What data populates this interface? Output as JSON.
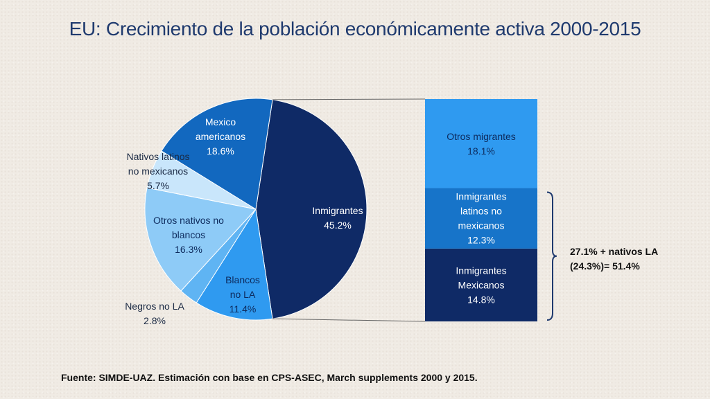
{
  "title": "EU: Crecimiento de la población económicamente activa 2000-2015",
  "source": "Fuente:  SIMDE-UAZ. Estimación con base en CPS-ASEC, March supplements 2000 y 2015.",
  "bracket_note": [
    "27.1% + nativos LA",
    "(24.3%)= 51.4%"
  ],
  "chart_data": [
    {
      "type": "pie",
      "slices": [
        {
          "label": [
            "Inmigrantes",
            "45.2%"
          ],
          "value": 45.2,
          "color": "#0f2a66"
        },
        {
          "label": [
            "Blancos",
            "no LA",
            "11.4%"
          ],
          "value": 11.4,
          "color": "#2f9af0"
        },
        {
          "label": [
            "Negros no LA",
            "2.8%"
          ],
          "value": 2.8,
          "color": "#5fb4f3"
        },
        {
          "label": [
            "Otros nativos no",
            "blancos",
            "16.3%"
          ],
          "value": 16.3,
          "color": "#8ecbf7"
        },
        {
          "label": [
            "Nativos latinos",
            "no mexicanos",
            "5.7%"
          ],
          "value": 5.7,
          "color": "#c9e6fb"
        },
        {
          "label": [
            "Mexico",
            "americanos",
            "18.6%"
          ],
          "value": 18.6,
          "color": "#1268bf"
        }
      ]
    },
    {
      "type": "bar",
      "stacked": true,
      "segments": [
        {
          "label": [
            "Inmigrantes",
            "Mexicanos",
            "14.8%"
          ],
          "value": 14.8,
          "color": "#0f2a66"
        },
        {
          "label": [
            "Inmigrantes",
            "latinos no",
            "mexicanos",
            "12.3%"
          ],
          "value": 12.3,
          "color": "#1774c9"
        },
        {
          "label": [
            "Otros migrantes",
            "18.1%"
          ],
          "value": 18.1,
          "color": "#2f9af0"
        }
      ]
    }
  ]
}
